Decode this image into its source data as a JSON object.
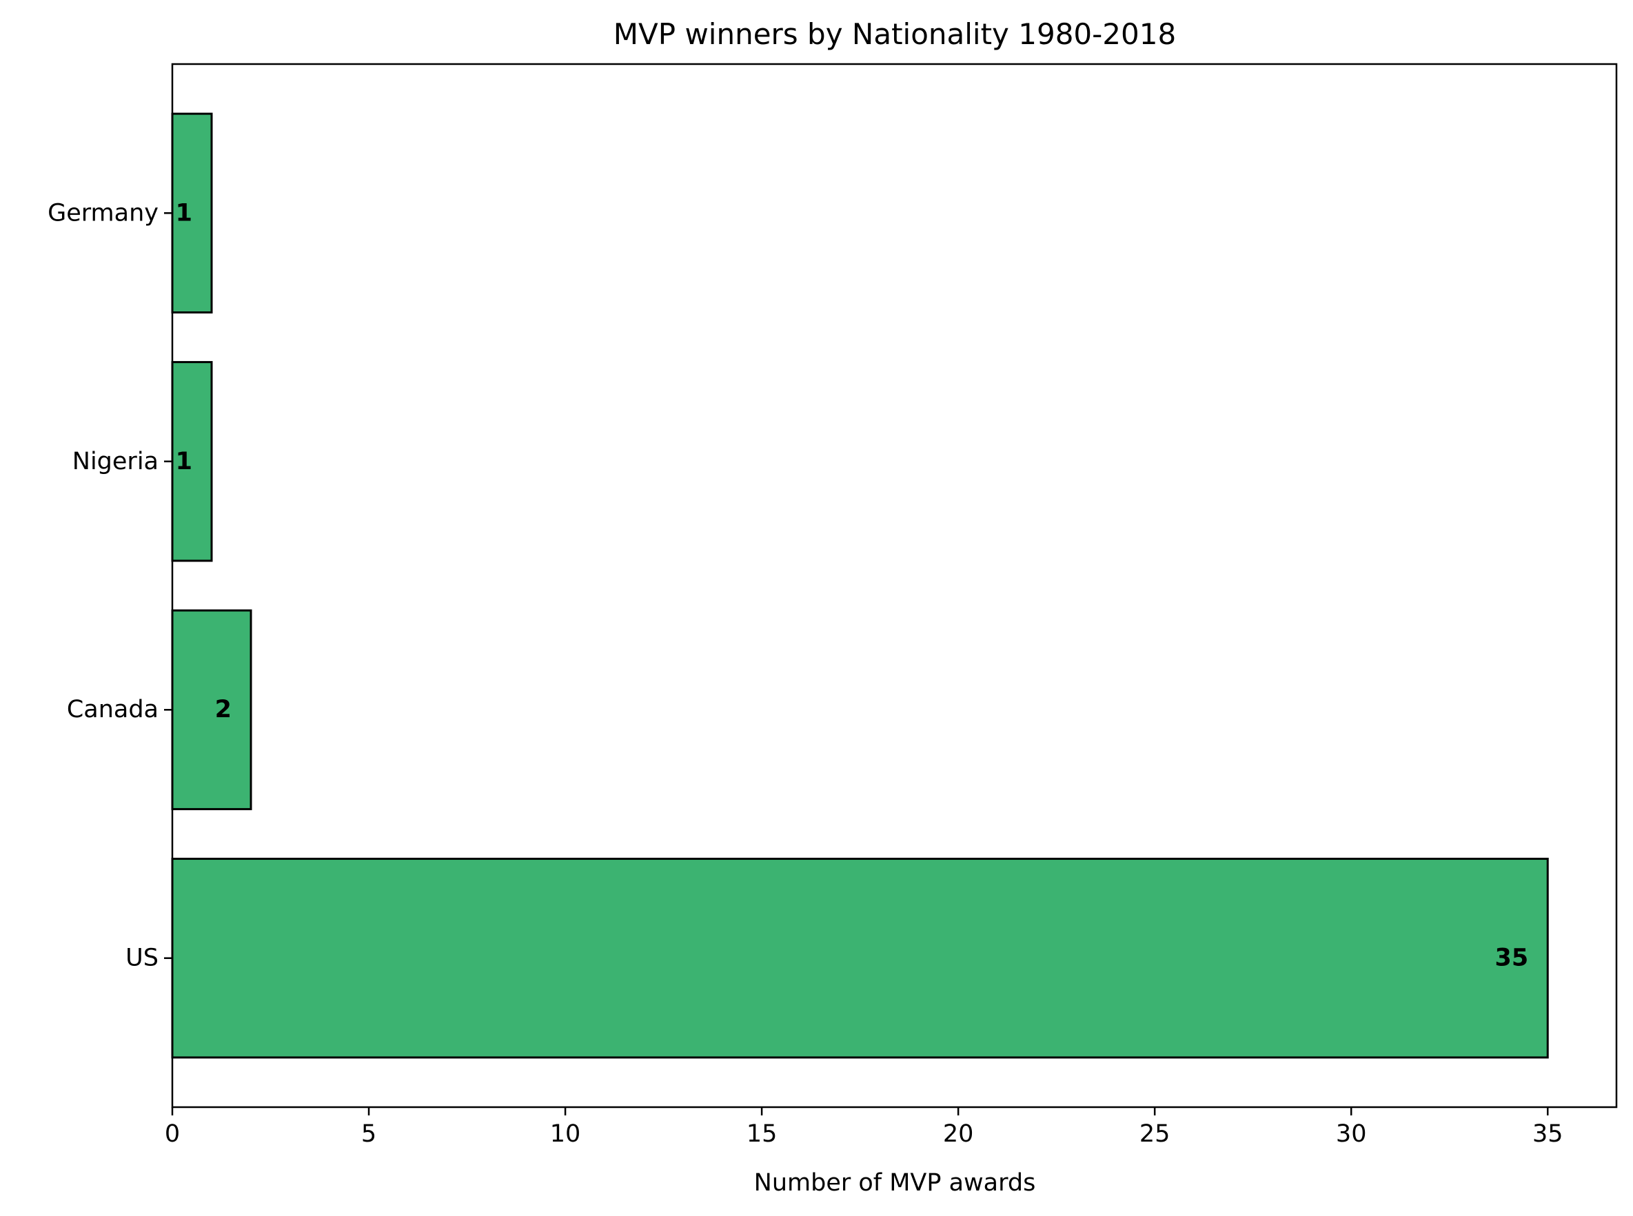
{
  "chart_data": {
    "type": "bar",
    "orientation": "horizontal",
    "title": "MVP winners by Nationality 1980-2018",
    "xlabel": "Number of MVP awards",
    "ylabel": "",
    "categories": [
      "US",
      "Canada",
      "Nigeria",
      "Germany"
    ],
    "values": [
      35,
      2,
      1,
      1
    ],
    "data_labels": [
      "35",
      "2",
      "1",
      "1"
    ],
    "xlim": [
      0,
      36.75
    ],
    "xticks": [
      0,
      5,
      10,
      15,
      20,
      25,
      30,
      35
    ],
    "xtick_labels": [
      "0",
      "5",
      "10",
      "15",
      "20",
      "25",
      "30",
      "35"
    ],
    "grid": false,
    "legend": "none",
    "bar_color": "#3cb371",
    "edge_color": "#000000"
  }
}
